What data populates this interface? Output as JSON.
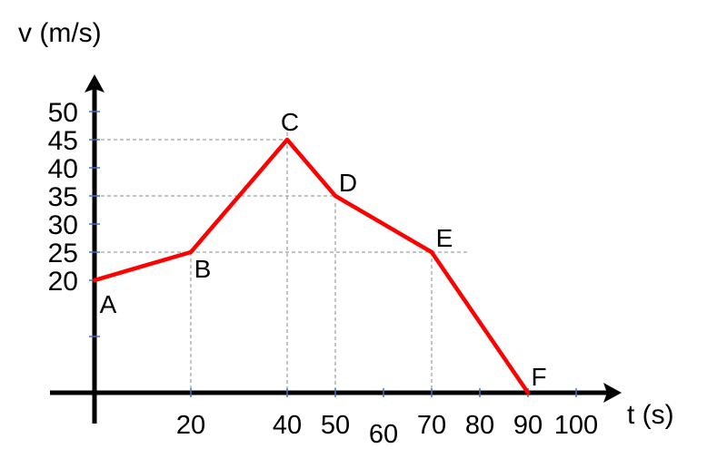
{
  "chart_data": {
    "type": "line",
    "xlabel": "t (s)",
    "ylabel": "v (m/s)",
    "x_ticks": [
      20,
      40,
      50,
      60,
      70,
      80,
      90,
      100
    ],
    "y_ticks": [
      20,
      25,
      30,
      35,
      40,
      45,
      50
    ],
    "xlim": [
      0,
      100
    ],
    "ylim": [
      0,
      50
    ],
    "grid": false,
    "series": [
      {
        "points": [
          {
            "label": "A",
            "x": 0,
            "y": 20
          },
          {
            "label": "B",
            "x": 20,
            "y": 25
          },
          {
            "label": "C",
            "x": 40,
            "y": 45
          },
          {
            "label": "D",
            "x": 50,
            "y": 35
          },
          {
            "label": "E",
            "x": 70,
            "y": 25
          },
          {
            "label": "F",
            "x": 90,
            "y": 0
          }
        ]
      }
    ],
    "colors": {
      "series": "#ff0000",
      "axis": "#000000",
      "guide": "#888888",
      "minor_tick": "#4472c4"
    }
  }
}
